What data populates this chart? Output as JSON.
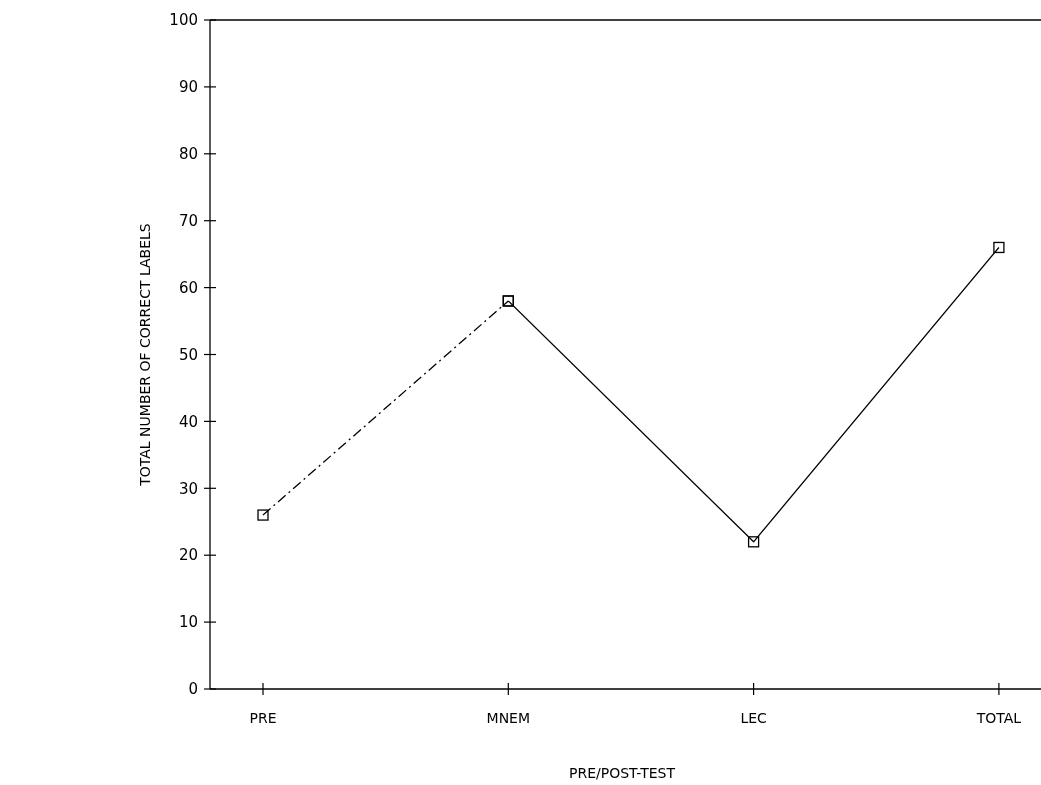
{
  "chart_data": {
    "type": "line",
    "xlabel": "PRE/POST-TEST",
    "ylabel": "TOTAL NUMBER OF CORRECT LABELS",
    "categories": [
      "PRE",
      "MNEM",
      "LEC",
      "TOTAL"
    ],
    "series": [
      {
        "color": "#000000",
        "line_style": "dashed",
        "values": [
          26,
          58,
          null,
          null
        ]
      },
      {
        "color": "#000000",
        "line_style": "solid",
        "values": [
          null,
          58,
          22,
          66
        ]
      }
    ],
    "ylim": [
      0,
      100
    ],
    "yticks": [
      0,
      10,
      20,
      30,
      40,
      50,
      60,
      70,
      80,
      90,
      100
    ],
    "marker": "square",
    "grid": false
  }
}
